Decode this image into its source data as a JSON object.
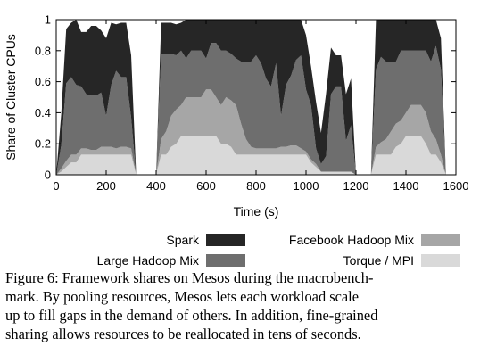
{
  "chart_data": {
    "type": "area",
    "stacked": true,
    "xlabel": "Time (s)",
    "ylabel": "Share of Cluster CPUs",
    "xlim": [
      0,
      1600
    ],
    "ylim": [
      0,
      1
    ],
    "xticks": [
      0,
      200,
      400,
      600,
      800,
      1000,
      1200,
      1400,
      1600
    ],
    "xtick_labels": [
      "0",
      "200",
      "400",
      "600",
      "800",
      "1000",
      "1200",
      "1400",
      "1600"
    ],
    "yticks": [
      0,
      0.2,
      0.4,
      0.6,
      0.8,
      1
    ],
    "ytick_labels": [
      "0",
      "0.2",
      "0.4",
      "0.6",
      "0.8",
      "1"
    ],
    "x": [
      0,
      20,
      40,
      60,
      80,
      100,
      120,
      140,
      160,
      180,
      200,
      220,
      240,
      260,
      280,
      300,
      320,
      340,
      360,
      380,
      400,
      420,
      440,
      460,
      480,
      500,
      520,
      540,
      560,
      580,
      600,
      620,
      640,
      660,
      680,
      700,
      720,
      740,
      760,
      780,
      800,
      820,
      840,
      860,
      880,
      900,
      920,
      940,
      960,
      980,
      1000,
      1020,
      1040,
      1060,
      1080,
      1100,
      1120,
      1140,
      1160,
      1180,
      1200,
      1220,
      1240,
      1260,
      1280,
      1300,
      1320,
      1340,
      1360,
      1380,
      1400,
      1420,
      1440,
      1460,
      1480,
      1500,
      1520,
      1540,
      1560,
      1580,
      1600
    ],
    "series": [
      {
        "name": "Torque / MPI",
        "color": "#d9d9d9",
        "values": [
          0,
          0.02,
          0.05,
          0.08,
          0.08,
          0.13,
          0.13,
          0.13,
          0.13,
          0.13,
          0.13,
          0.13,
          0.13,
          0.13,
          0.13,
          0.13,
          0,
          0,
          0,
          0,
          0,
          0.13,
          0.13,
          0.18,
          0.2,
          0.25,
          0.25,
          0.25,
          0.25,
          0.25,
          0.25,
          0.25,
          0.25,
          0.2,
          0.2,
          0.18,
          0.13,
          0.13,
          0.13,
          0.13,
          0.13,
          0.13,
          0.13,
          0.13,
          0.13,
          0.13,
          0.13,
          0.13,
          0.13,
          0.13,
          0.13,
          0.08,
          0.05,
          0.02,
          0.02,
          0.02,
          0.02,
          0.02,
          0.02,
          0.02,
          0,
          0,
          0,
          0,
          0.13,
          0.13,
          0.13,
          0.13,
          0.18,
          0.2,
          0.25,
          0.25,
          0.25,
          0.25,
          0.2,
          0.13,
          0.13,
          0.08,
          0,
          0,
          0
        ]
      },
      {
        "name": "Facebook Hadoop Mix",
        "color": "#a6a6a6",
        "values": [
          0,
          0.02,
          0.04,
          0.05,
          0.05,
          0.04,
          0.04,
          0.03,
          0.03,
          0.05,
          0.05,
          0.05,
          0.04,
          0.05,
          0.05,
          0.04,
          0,
          0,
          0,
          0,
          0,
          0.1,
          0.15,
          0.2,
          0.22,
          0.2,
          0.25,
          0.25,
          0.25,
          0.25,
          0.3,
          0.3,
          0.25,
          0.25,
          0.3,
          0.3,
          0.32,
          0.2,
          0.1,
          0.05,
          0.04,
          0.04,
          0.04,
          0.04,
          0.04,
          0.05,
          0.05,
          0.06,
          0.06,
          0.04,
          0.02,
          0.02,
          0.02,
          0,
          0,
          0,
          0,
          0,
          0,
          0,
          0,
          0,
          0,
          0,
          0.05,
          0.08,
          0.1,
          0.15,
          0.15,
          0.15,
          0.15,
          0.2,
          0.2,
          0.2,
          0.2,
          0.15,
          0.1,
          0.05,
          0,
          0,
          0
        ]
      },
      {
        "name": "Large Hadoop Mix",
        "color": "#6e6e6e",
        "values": [
          0,
          0.15,
          0.5,
          0.5,
          0.45,
          0.4,
          0.35,
          0.35,
          0.35,
          0.35,
          0.2,
          0.4,
          0.5,
          0.45,
          0.45,
          0.2,
          0,
          0,
          0,
          0,
          0,
          0.55,
          0.5,
          0.4,
          0.35,
          0.35,
          0.25,
          0.3,
          0.3,
          0.3,
          0.2,
          0.3,
          0.35,
          0.35,
          0.3,
          0.3,
          0.3,
          0.4,
          0.5,
          0.55,
          0.6,
          0.55,
          0.45,
          0.4,
          0.55,
          0.2,
          0.4,
          0.45,
          0.55,
          0.6,
          0.4,
          0.35,
          0.1,
          0.05,
          0.1,
          0.5,
          0.55,
          0.55,
          0.2,
          0.3,
          0,
          0,
          0,
          0,
          0.5,
          0.55,
          0.5,
          0.45,
          0.4,
          0.45,
          0.4,
          0.35,
          0.35,
          0.35,
          0.4,
          0.45,
          0.6,
          0.55,
          0,
          0,
          0
        ]
      },
      {
        "name": "Spark",
        "color": "#262626",
        "values": [
          0,
          0.2,
          0.35,
          0.35,
          0.42,
          0.35,
          0.4,
          0.45,
          0.45,
          0.4,
          0.5,
          0.4,
          0.3,
          0.35,
          0.35,
          0.4,
          0,
          0,
          0,
          0,
          0,
          0.2,
          0.2,
          0.2,
          0.2,
          0.18,
          0.25,
          0.2,
          0.2,
          0.2,
          0.25,
          0.15,
          0.15,
          0.2,
          0.2,
          0.22,
          0.25,
          0.27,
          0.27,
          0.27,
          0.23,
          0.28,
          0.38,
          0.43,
          0.28,
          0.62,
          0.42,
          0.36,
          0.26,
          0.23,
          0.35,
          0.25,
          0.3,
          0.2,
          0.4,
          0.3,
          0.2,
          0.2,
          0.3,
          0.3,
          0,
          0,
          0,
          0,
          0.32,
          0.24,
          0.27,
          0.27,
          0.27,
          0.2,
          0.2,
          0.2,
          0.2,
          0.2,
          0.2,
          0.27,
          0.17,
          0.2,
          0,
          0,
          0
        ]
      }
    ],
    "legend": {
      "placement": "bottom",
      "entries": [
        {
          "label": "Spark",
          "color": "#262626"
        },
        {
          "label": "Facebook Hadoop Mix",
          "color": "#a6a6a6"
        },
        {
          "label": "Large Hadoop Mix",
          "color": "#6e6e6e"
        },
        {
          "label": "Torque / MPI",
          "color": "#d9d9d9"
        }
      ]
    }
  },
  "caption": {
    "lines": [
      "Figure 6: Framework shares on Mesos during the macrobench-",
      "mark.  By pooling resources, Mesos lets each workload scale",
      "up to fill gaps in the demand of others. In addition, fine-grained",
      "sharing allows resources to be reallocated in tens of seconds."
    ]
  }
}
